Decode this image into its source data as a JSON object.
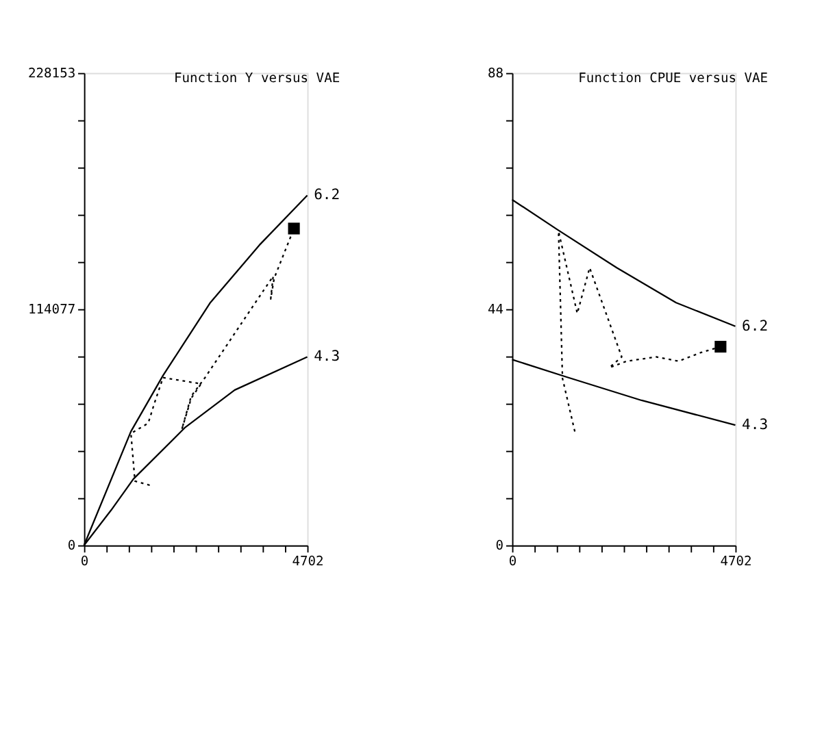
{
  "chart_data": [
    {
      "type": "line",
      "title": "Function Y versus VAE",
      "grid": false,
      "xlim": [
        0,
        4702
      ],
      "ylim": [
        0,
        228153
      ],
      "xticks": [
        0,
        {
          "value": 470.2,
          "label": null
        },
        {
          "value": 940.4,
          "label": null
        },
        {
          "value": 1410.6,
          "label": null
        },
        {
          "value": 1880.8,
          "label": null
        },
        {
          "value": 2351,
          "label": null
        },
        {
          "value": 2821.2,
          "label": null
        },
        {
          "value": 3291.4,
          "label": null
        },
        {
          "value": 3761.6,
          "label": null
        },
        {
          "value": 4231.8,
          "label": null
        },
        4702
      ],
      "yticks": [
        0,
        {
          "value": 22815.3,
          "label": null
        },
        {
          "value": 45630.6,
          "label": null
        },
        {
          "value": 68445.9,
          "label": null
        },
        {
          "value": 91261.2,
          "label": null
        },
        {
          "value": 114076.5,
          "label": "114077"
        },
        {
          "value": 136891.8,
          "label": null
        },
        {
          "value": 159707.1,
          "label": null
        },
        {
          "value": 182522.4,
          "label": null
        },
        {
          "value": 205337.7,
          "label": null
        },
        228153
      ],
      "series": [
        {
          "name": "6.2",
          "color": "#000000",
          "line_style": "solid",
          "marker": "none",
          "x": [
            0,
            988,
            1664,
            2653,
            3693,
            4702
          ],
          "values": [
            0,
            55000,
            82000,
            117000,
            145000,
            169000
          ]
        },
        {
          "name": "4.3",
          "color": "#000000",
          "line_style": "solid",
          "marker": "none",
          "x": [
            0,
            572,
            1040,
            2133,
            3173,
            4702
          ],
          "values": [
            0,
            17000,
            32000,
            57000,
            75000,
            91000
          ]
        },
        {
          "color": "#000000",
          "line_style": "dotted",
          "marker": "none",
          "x": [
            1384,
            1072,
            988,
            1352,
            1488,
            1664,
            2465,
            2257,
            2060,
            2257,
            2549,
            3017,
            3485,
            3984,
            3932,
            4005,
            4421
          ],
          "values": [
            29000,
            31000,
            54000,
            59000,
            69000,
            81000,
            78000,
            71000,
            56000,
            72000,
            81000,
            97000,
            113000,
            130000,
            119000,
            129000,
            153000
          ]
        },
        {
          "type": "scatter",
          "color": "#000000",
          "marker": "square",
          "x": [
            4421
          ],
          "values": [
            153000
          ]
        }
      ]
    },
    {
      "type": "line",
      "title": "Function CPUE versus VAE",
      "grid": false,
      "xlim": [
        0,
        4702
      ],
      "ylim": [
        0,
        88
      ],
      "xticks": [
        0,
        {
          "value": 470.2,
          "label": null
        },
        {
          "value": 940.4,
          "label": null
        },
        {
          "value": 1410.6,
          "label": null
        },
        {
          "value": 1880.8,
          "label": null
        },
        {
          "value": 2351,
          "label": null
        },
        {
          "value": 2821.2,
          "label": null
        },
        {
          "value": 3291.4,
          "label": null
        },
        {
          "value": 3761.6,
          "label": null
        },
        {
          "value": 4231.8,
          "label": null
        },
        4702
      ],
      "yticks": [
        0,
        {
          "value": 8.8,
          "label": null
        },
        {
          "value": 17.6,
          "label": null
        },
        {
          "value": 26.4,
          "label": null
        },
        {
          "value": 35.2,
          "label": null
        },
        44,
        {
          "value": 52.8,
          "label": null
        },
        {
          "value": 61.6,
          "label": null
        },
        {
          "value": 70.4,
          "label": null
        },
        {
          "value": 79.2,
          "label": null
        },
        88
      ],
      "series": [
        {
          "name": "6.2",
          "color": "#000000",
          "line_style": "solid",
          "marker": "none",
          "x": [
            0,
            957,
            2205,
            3454,
            4702
          ],
          "values": [
            64.4,
            58.8,
            51.7,
            45.2,
            40.8
          ]
        },
        {
          "name": "4.3",
          "color": "#000000",
          "line_style": "solid",
          "marker": "none",
          "x": [
            0,
            1165,
            2726,
            4702
          ],
          "values": [
            34.6,
            31.3,
            27.0,
            22.4
          ]
        },
        {
          "color": "#000000",
          "line_style": "dotted",
          "marker": "none",
          "x": [
            1321,
            1061,
            978,
            1373,
            1633,
            2309,
            2049,
            2413,
            3038,
            3506,
            3974,
            4390
          ],
          "values": [
            21.2,
            31.1,
            58.5,
            43.2,
            51.7,
            35.1,
            33.1,
            34.3,
            35.1,
            34.3,
            35.9,
            37.0
          ]
        },
        {
          "type": "scatter",
          "color": "#000000",
          "marker": "square",
          "x": [
            4390
          ],
          "values": [
            37.0
          ]
        }
      ]
    }
  ]
}
